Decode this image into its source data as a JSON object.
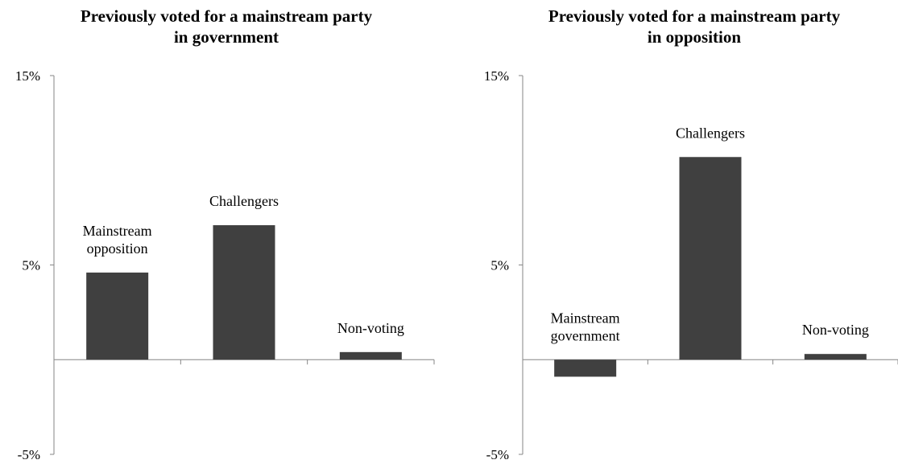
{
  "chart_data": [
    {
      "type": "bar",
      "title": [
        "Previously voted for a mainstream party",
        "in government"
      ],
      "categories": [
        [
          "Mainstream",
          "opposition"
        ],
        [
          "Challengers"
        ],
        [
          "Non-voting"
        ]
      ],
      "values": [
        4.6,
        7.1,
        0.4
      ],
      "yticks": [
        "15%",
        "5%",
        "-5%"
      ],
      "ylim": [
        -5,
        15
      ],
      "color": "#404040"
    },
    {
      "type": "bar",
      "title": [
        "Previously voted for a mainstream party",
        "in opposition"
      ],
      "categories": [
        [
          "Mainstream",
          "government"
        ],
        [
          "Challengers"
        ],
        [
          "Non-voting"
        ]
      ],
      "values": [
        -0.9,
        10.7,
        0.3
      ],
      "yticks": [
        "15%",
        "5%",
        "-5%"
      ],
      "ylim": [
        -5,
        15
      ],
      "color": "#404040"
    }
  ]
}
